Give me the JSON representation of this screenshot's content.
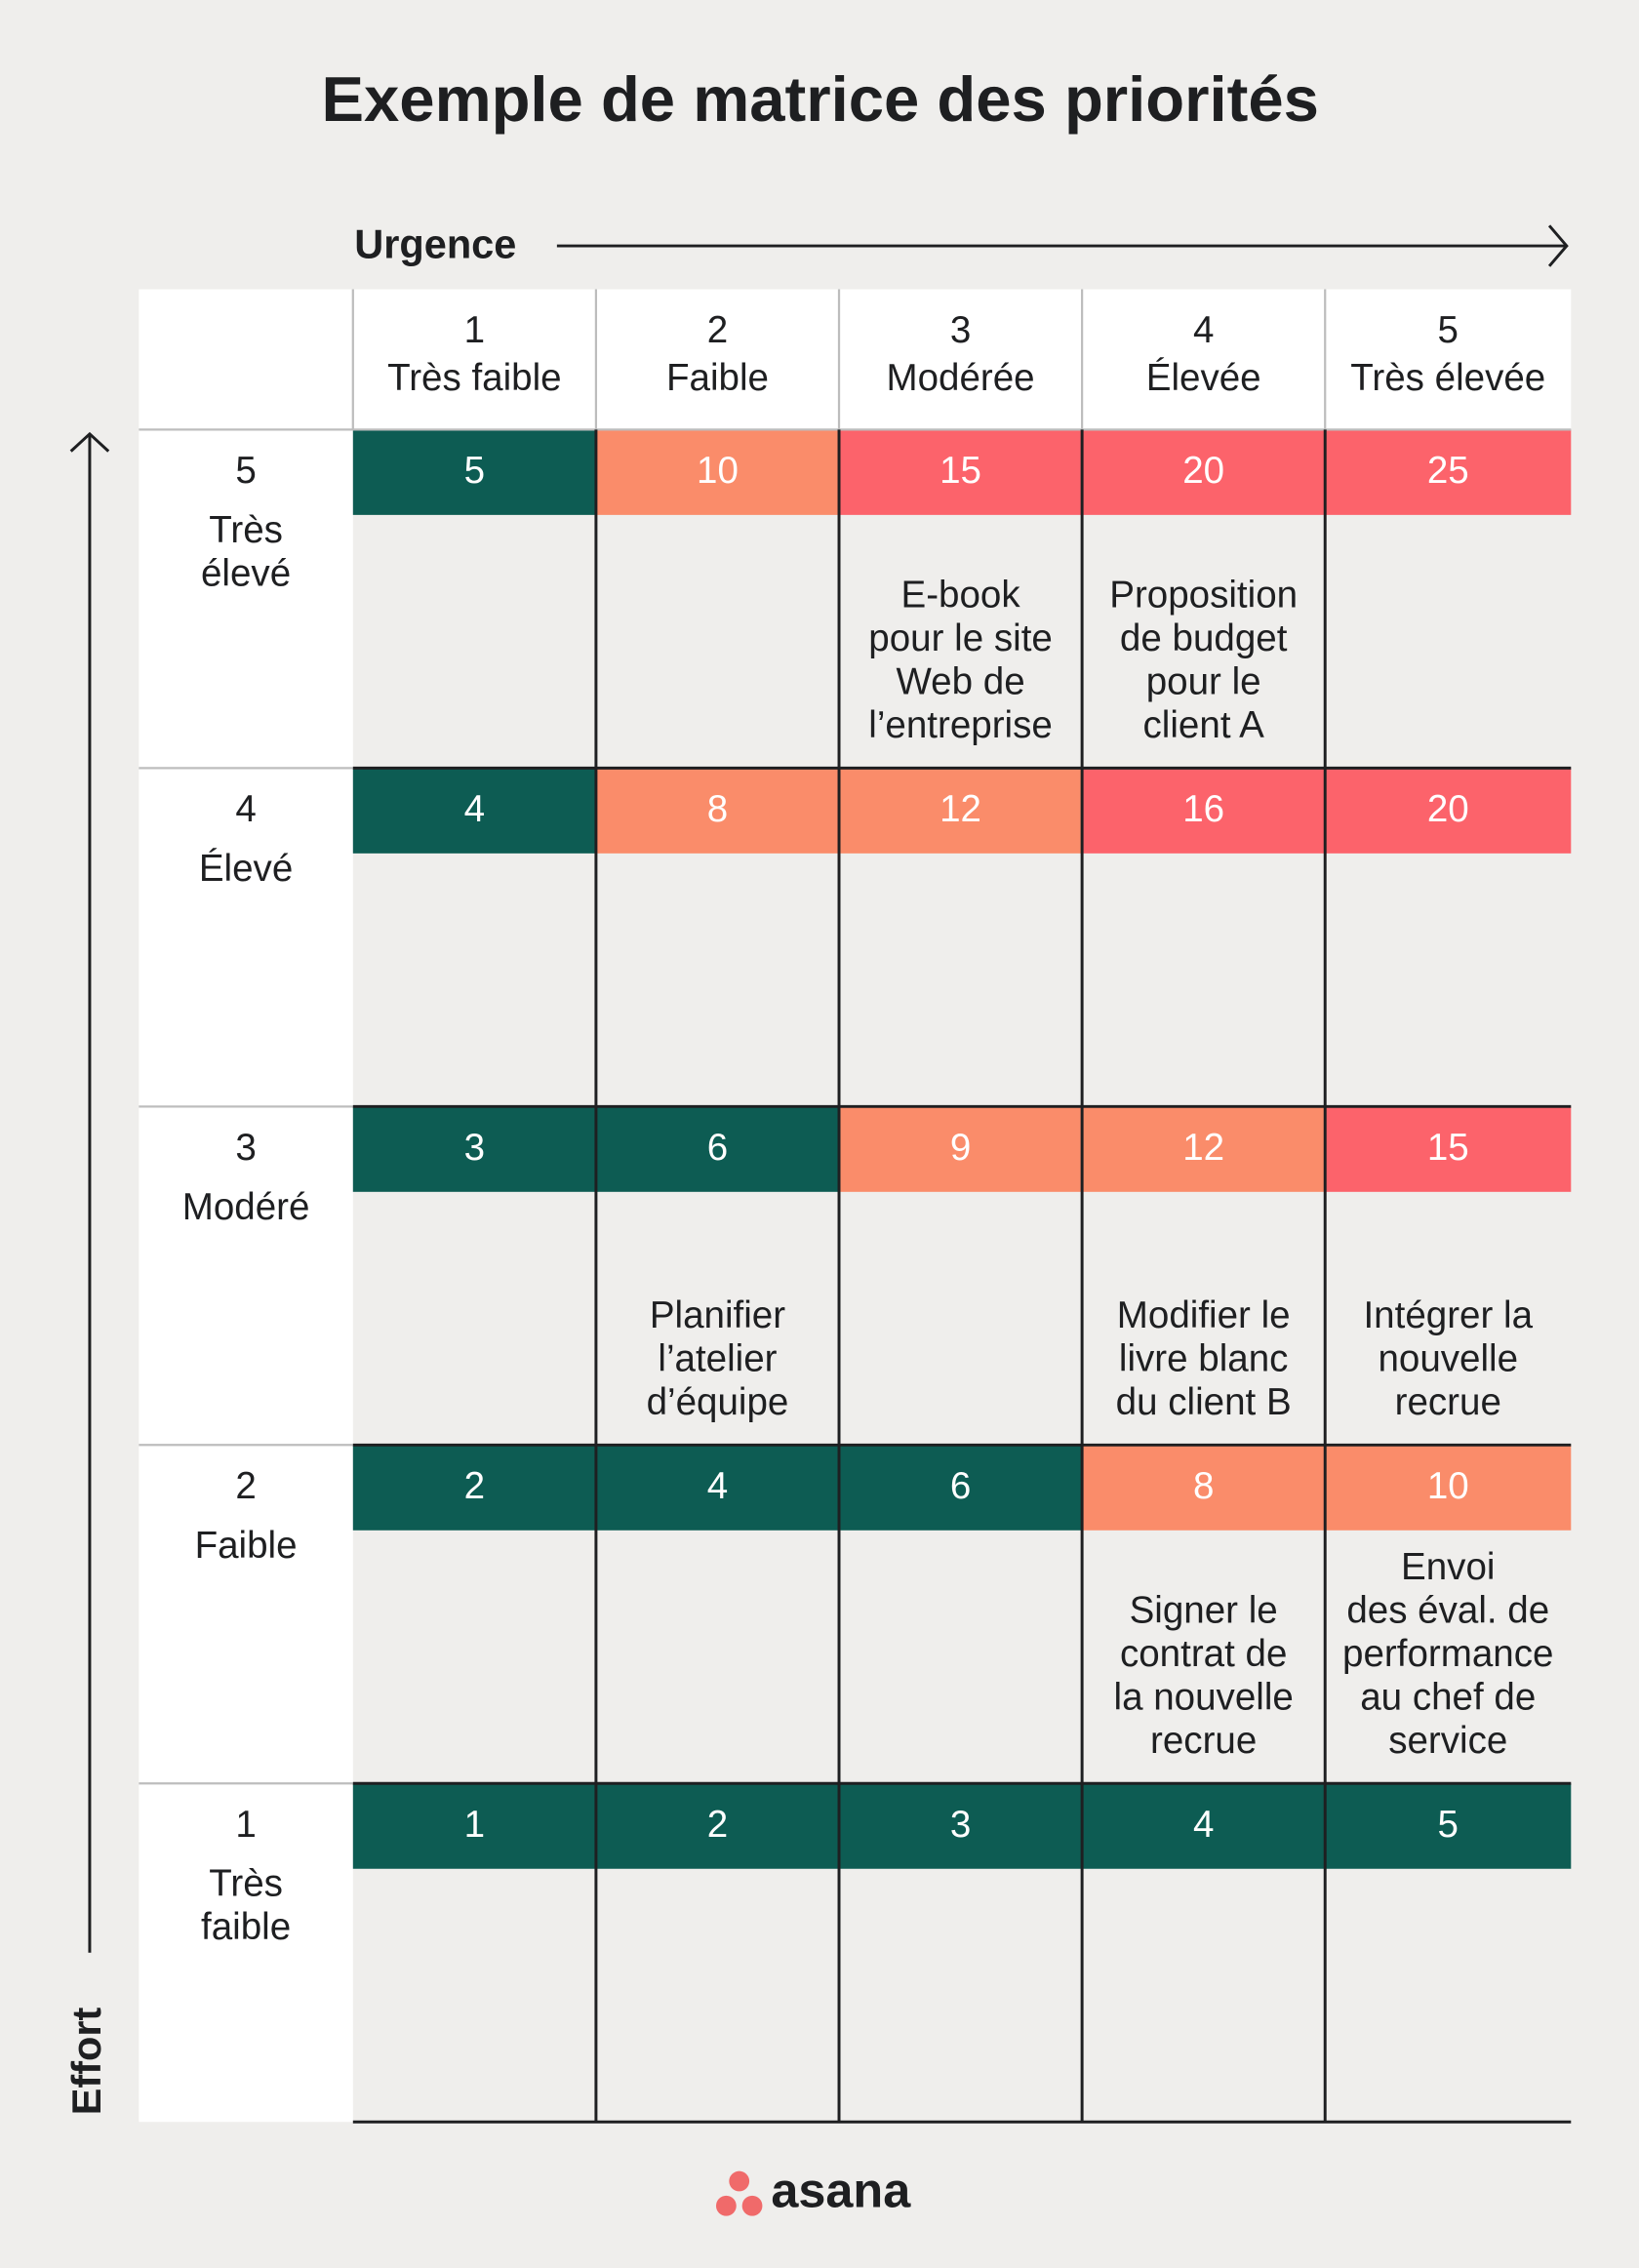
{
  "title": "Exemple de matrice des priorités",
  "x_axis": "Urgence",
  "y_axis": "Effort",
  "columns": [
    {
      "number": "1",
      "label": "Très faible"
    },
    {
      "number": "2",
      "label": "Faible"
    },
    {
      "number": "3",
      "label": "Modérée"
    },
    {
      "number": "4",
      "label": "Élevée"
    },
    {
      "number": "5",
      "label": "Très élevée"
    }
  ],
  "rows": [
    {
      "number": "5",
      "label_lines": [
        "Très",
        "élevé"
      ],
      "scores": [
        5,
        10,
        15,
        20,
        25
      ],
      "colors": [
        "#0d5c53",
        "#fa8c6a",
        "#fc636b",
        "#fc636b",
        "#fc636b"
      ],
      "tasks": [
        null,
        null,
        [
          "E-book",
          "pour le site",
          "Web de",
          "l’entreprise"
        ],
        [
          "Proposition",
          "de budget",
          "pour le",
          "client A"
        ],
        null
      ]
    },
    {
      "number": "4",
      "label_lines": [
        "Élevé"
      ],
      "scores": [
        4,
        8,
        12,
        16,
        20
      ],
      "colors": [
        "#0d5c53",
        "#fa8c6a",
        "#fa8c6a",
        "#fc636b",
        "#fc636b"
      ],
      "tasks": [
        null,
        null,
        null,
        null,
        null
      ]
    },
    {
      "number": "3",
      "label_lines": [
        "Modéré"
      ],
      "scores": [
        3,
        6,
        9,
        12,
        15
      ],
      "colors": [
        "#0d5c53",
        "#0d5c53",
        "#fa8c6a",
        "#fa8c6a",
        "#fc636b"
      ],
      "tasks": [
        null,
        [
          "Planifier",
          "l’atelier",
          "d’équipe"
        ],
        null,
        [
          "Modifier le",
          "livre blanc",
          "du client B"
        ],
        [
          "Intégrer la",
          "nouvelle",
          "recrue"
        ]
      ]
    },
    {
      "number": "2",
      "label_lines": [
        "Faible"
      ],
      "scores": [
        2,
        4,
        6,
        8,
        10
      ],
      "colors": [
        "#0d5c53",
        "#0d5c53",
        "#0d5c53",
        "#fa8c6a",
        "#fa8c6a"
      ],
      "tasks": [
        null,
        null,
        null,
        [
          "Signer le",
          "contrat de",
          "la nouvelle",
          "recrue"
        ],
        [
          "Envoi",
          "des éval. de",
          "performance",
          "au chef de",
          "service"
        ]
      ]
    },
    {
      "number": "1",
      "label_lines": [
        "Très",
        "faible"
      ],
      "scores": [
        1,
        2,
        3,
        4,
        5
      ],
      "colors": [
        "#0d5c53",
        "#0d5c53",
        "#0d5c53",
        "#0d5c53",
        "#0d5c53"
      ],
      "tasks": [
        null,
        null,
        null,
        null,
        null
      ]
    }
  ],
  "logo": "asana"
}
